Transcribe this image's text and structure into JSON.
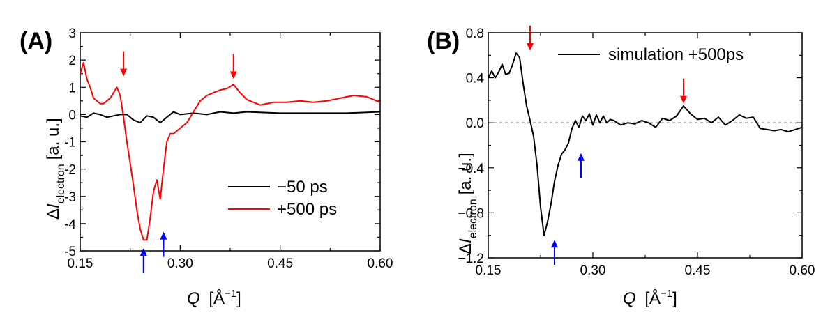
{
  "chart_data": [
    {
      "type": "line",
      "panel_label": "(A)",
      "xlabel": "Q [Å⁻¹]",
      "xlabel_var": "Q",
      "xlabel_unit": "[Å",
      "xlabel_sup": "−1",
      "xlabel_close": "]",
      "ylabel_delta": "Δ",
      "ylabel_var": "I",
      "ylabel_sub": "electron",
      "ylabel_unit": "[a. u.]",
      "xlim": [
        0.15,
        0.6
      ],
      "ylim": [
        -5,
        3
      ],
      "xticks": [
        "0.15",
        "0.30",
        "0.45",
        "0.60"
      ],
      "xtick_values": [
        0.15,
        0.3,
        0.45,
        0.6
      ],
      "yticks": [
        "3",
        "2",
        "1",
        "0",
        "-1",
        "-2",
        "-3",
        "-4",
        "-5"
      ],
      "ytick_values": [
        3,
        2,
        1,
        0,
        -1,
        -2,
        -3,
        -4,
        -5
      ],
      "legend_position": "bottom-right",
      "series": [
        {
          "name": "−50 ps",
          "color": "#000000",
          "x": [
            0.15,
            0.16,
            0.17,
            0.18,
            0.19,
            0.2,
            0.21,
            0.22,
            0.23,
            0.24,
            0.25,
            0.26,
            0.27,
            0.28,
            0.29,
            0.3,
            0.32,
            0.34,
            0.36,
            0.38,
            0.4,
            0.45,
            0.5,
            0.55,
            0.6
          ],
          "y": [
            -0.05,
            -0.1,
            0.05,
            0.0,
            -0.1,
            -0.05,
            0.0,
            0.0,
            -0.2,
            -0.3,
            -0.05,
            -0.1,
            -0.3,
            -0.1,
            0.1,
            0.0,
            0.05,
            0.0,
            0.1,
            0.05,
            0.1,
            0.05,
            0.05,
            0.05,
            0.1
          ]
        },
        {
          "name": "+500 ps",
          "color": "#ff0000",
          "x": [
            0.15,
            0.155,
            0.16,
            0.165,
            0.17,
            0.175,
            0.18,
            0.185,
            0.19,
            0.195,
            0.2,
            0.205,
            0.21,
            0.215,
            0.22,
            0.225,
            0.23,
            0.235,
            0.24,
            0.245,
            0.25,
            0.255,
            0.26,
            0.265,
            0.27,
            0.275,
            0.28,
            0.285,
            0.29,
            0.3,
            0.31,
            0.32,
            0.33,
            0.34,
            0.35,
            0.36,
            0.37,
            0.38,
            0.39,
            0.4,
            0.42,
            0.44,
            0.46,
            0.48,
            0.5,
            0.52,
            0.54,
            0.56,
            0.58,
            0.6
          ],
          "y": [
            1.5,
            1.9,
            1.3,
            1.0,
            0.6,
            0.5,
            0.4,
            0.4,
            0.5,
            0.6,
            0.8,
            1.0,
            0.7,
            -0.1,
            -1.0,
            -1.8,
            -2.6,
            -3.5,
            -4.2,
            -4.6,
            -4.6,
            -3.8,
            -2.8,
            -2.4,
            -3.1,
            -2.0,
            -1.0,
            -0.7,
            -0.7,
            -0.5,
            -0.3,
            0.1,
            0.5,
            0.7,
            0.8,
            0.9,
            0.95,
            1.1,
            0.8,
            0.55,
            0.35,
            0.45,
            0.45,
            0.5,
            0.45,
            0.5,
            0.6,
            0.7,
            0.65,
            0.45
          ]
        }
      ],
      "annotations": [
        {
          "type": "arrow",
          "direction": "down",
          "color": "#ff0000",
          "x": 0.215,
          "y": 1.4
        },
        {
          "type": "arrow",
          "direction": "down",
          "color": "#ff0000",
          "x": 0.38,
          "y": 1.3
        },
        {
          "type": "arrow",
          "direction": "up",
          "color": "#0000ff",
          "x": 0.245,
          "y": -4.9
        },
        {
          "type": "arrow",
          "direction": "up",
          "color": "#0000ff",
          "x": 0.275,
          "y": -4.3
        }
      ]
    },
    {
      "type": "line",
      "panel_label": "(B)",
      "xlabel": "Q [Å⁻¹]",
      "xlabel_var": "Q",
      "xlabel_unit": "[Å",
      "xlabel_sup": "−1",
      "xlabel_close": "]",
      "ylabel_delta": "Δ",
      "ylabel_var": "I",
      "ylabel_sub": "electron",
      "ylabel_unit": "[a. u.]",
      "xlim": [
        0.15,
        0.6
      ],
      "ylim": [
        -1.2,
        0.8
      ],
      "xticks": [
        "0.15",
        "0.30",
        "0.45",
        "0.60"
      ],
      "xtick_values": [
        0.15,
        0.3,
        0.45,
        0.6
      ],
      "yticks": [
        "0.8",
        "0.4",
        "0.0",
        "−0.4",
        "−0.8",
        "−1.2"
      ],
      "ytick_values": [
        0.8,
        0.4,
        0.0,
        -0.4,
        -0.8,
        -1.2
      ],
      "legend_position": "top-right",
      "reference_line": 0.0,
      "series": [
        {
          "name": "simulation +500ps",
          "color": "#000000",
          "x": [
            0.15,
            0.155,
            0.16,
            0.165,
            0.17,
            0.175,
            0.18,
            0.185,
            0.19,
            0.195,
            0.2,
            0.205,
            0.21,
            0.215,
            0.22,
            0.225,
            0.23,
            0.235,
            0.24,
            0.245,
            0.25,
            0.255,
            0.26,
            0.265,
            0.27,
            0.275,
            0.28,
            0.285,
            0.29,
            0.295,
            0.3,
            0.305,
            0.31,
            0.315,
            0.32,
            0.325,
            0.33,
            0.34,
            0.35,
            0.36,
            0.37,
            0.38,
            0.39,
            0.4,
            0.41,
            0.42,
            0.43,
            0.44,
            0.45,
            0.46,
            0.47,
            0.48,
            0.49,
            0.5,
            0.51,
            0.52,
            0.53,
            0.54,
            0.55,
            0.56,
            0.57,
            0.58,
            0.59,
            0.6
          ],
          "y": [
            0.4,
            0.46,
            0.4,
            0.45,
            0.52,
            0.43,
            0.44,
            0.52,
            0.62,
            0.58,
            0.35,
            0.15,
            0.02,
            -0.12,
            -0.38,
            -0.75,
            -1.0,
            -0.88,
            -0.72,
            -0.52,
            -0.38,
            -0.28,
            -0.24,
            -0.18,
            -0.05,
            0.02,
            -0.04,
            0.06,
            0.02,
            0.08,
            -0.02,
            0.07,
            0.0,
            0.06,
            0.0,
            0.03,
            0.02,
            -0.02,
            0.0,
            -0.01,
            0.02,
            0.0,
            -0.04,
            0.04,
            0.02,
            0.06,
            0.15,
            0.08,
            0.03,
            0.04,
            0.0,
            0.05,
            -0.02,
            0.02,
            0.07,
            0.04,
            0.05,
            -0.05,
            -0.06,
            -0.07,
            -0.06,
            -0.08,
            -0.06,
            -0.04
          ]
        }
      ],
      "annotations": [
        {
          "type": "arrow",
          "direction": "down",
          "color": "#ff0000",
          "x": 0.21,
          "y": 0.64
        },
        {
          "type": "arrow",
          "direction": "down",
          "color": "#ff0000",
          "x": 0.43,
          "y": 0.17
        },
        {
          "type": "arrow",
          "direction": "up",
          "color": "#0000ff",
          "x": 0.245,
          "y": -1.04
        },
        {
          "type": "arrow",
          "direction": "up",
          "color": "#0000ff",
          "x": 0.283,
          "y": -0.27
        }
      ]
    }
  ]
}
